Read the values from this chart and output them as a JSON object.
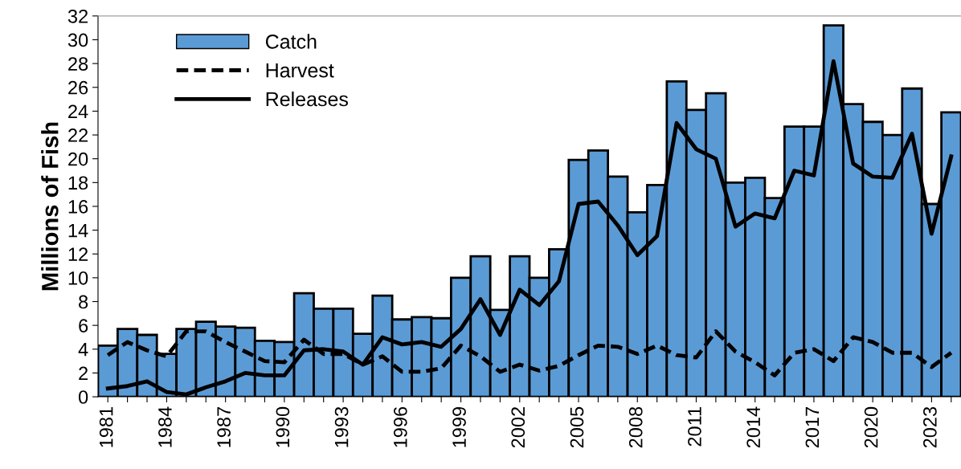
{
  "chart_data": {
    "type": "bar",
    "ylabel": "Millions of Fish",
    "categories": [
      "1981",
      null,
      null,
      "1984",
      null,
      null,
      "1987",
      null,
      null,
      "1990",
      null,
      null,
      "1993",
      null,
      null,
      "1996",
      null,
      null,
      "1999",
      null,
      null,
      "2002",
      null,
      null,
      "2005",
      null,
      null,
      "2008",
      null,
      null,
      "2011",
      null,
      null,
      "2014",
      null,
      null,
      "2017",
      null,
      null,
      "2020",
      null,
      null,
      "2023",
      null
    ],
    "series": [
      {
        "name": "Catch",
        "color": "#5b9bd5",
        "values": [
          4.3,
          5.7,
          5.2,
          3.6,
          5.7,
          6.3,
          5.9,
          5.8,
          4.7,
          4.6,
          8.7,
          7.4,
          7.4,
          5.3,
          8.5,
          6.5,
          6.7,
          6.6,
          10.0,
          11.8,
          7.3,
          11.8,
          10.0,
          12.4,
          19.9,
          20.7,
          18.5,
          15.5,
          17.8,
          26.5,
          24.1,
          25.5,
          18.0,
          18.4,
          16.7,
          22.7,
          22.7,
          31.2,
          24.6,
          23.1,
          22.0,
          25.9,
          16.2,
          23.9
        ]
      },
      {
        "name": "Harvest",
        "type": "line",
        "color": "#000000",
        "line_style": "dashed",
        "values": [
          3.5,
          4.6,
          3.9,
          3.4,
          5.5,
          5.5,
          4.6,
          3.8,
          3.0,
          2.9,
          4.8,
          3.6,
          3.6,
          2.7,
          3.4,
          2.1,
          2.1,
          2.4,
          4.3,
          3.4,
          2.1,
          2.7,
          2.2,
          2.6,
          3.5,
          4.3,
          4.2,
          3.6,
          4.3,
          3.5,
          3.3,
          5.5,
          3.8,
          2.9,
          1.8,
          3.7,
          4.0,
          3.0,
          5.0,
          4.6,
          3.7,
          3.7,
          2.5,
          3.7
        ]
      },
      {
        "name": "Releases",
        "type": "line",
        "color": "#000000",
        "line_style": "solid",
        "values": [
          0.7,
          0.9,
          1.3,
          0.4,
          0.2,
          0.8,
          1.3,
          2.0,
          1.8,
          1.8,
          3.9,
          4.0,
          3.8,
          2.7,
          5.0,
          4.4,
          4.6,
          4.2,
          5.7,
          8.2,
          5.2,
          9.0,
          7.7,
          9.7,
          16.2,
          16.4,
          14.4,
          11.9,
          13.5,
          23.0,
          20.8,
          20.0,
          14.3,
          15.4,
          15.0,
          19.0,
          18.6,
          28.2,
          19.6,
          18.5,
          18.4,
          22.1,
          13.7,
          20.2
        ]
      }
    ],
    "ylim": [
      0,
      32
    ],
    "yticks": [
      0,
      2,
      4,
      6,
      8,
      10,
      12,
      14,
      16,
      18,
      20,
      22,
      24,
      26,
      28,
      30,
      32
    ],
    "grid": false,
    "legend": "top left",
    "marker": "none"
  }
}
